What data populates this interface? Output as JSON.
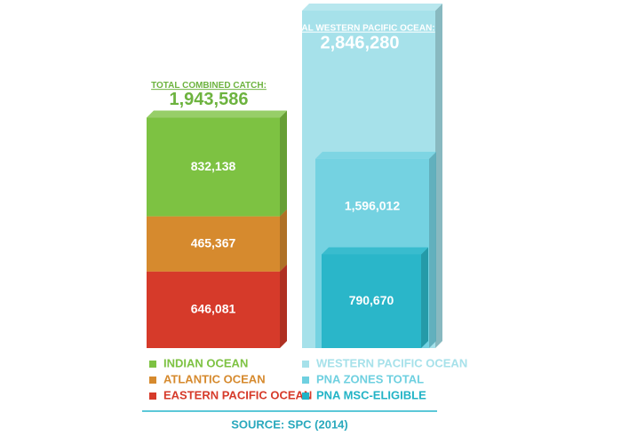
{
  "chart_data": [
    {
      "type": "stacked-bar",
      "title": "TOTAL COMBINED CATCH:",
      "total": 1943586,
      "total_label": "1,943,586",
      "series": [
        {
          "name": "INDIAN OCEAN",
          "color": "#7dc242",
          "values": [
            832138
          ],
          "value_labels": [
            "832,138"
          ]
        },
        {
          "name": "ATLANTIC OCEAN",
          "color": "#d68a2e",
          "values": [
            465367
          ],
          "value_labels": [
            "465,367"
          ]
        },
        {
          "name": "EASTERN PACIFIC OCEAN",
          "color": "#d63a2a",
          "values": [
            646081
          ],
          "value_labels": [
            "646,081"
          ]
        }
      ]
    },
    {
      "type": "nested-bar",
      "title": "TOTAL WESTERN PACIFIC OCEAN:",
      "series": [
        {
          "name": "WESTERN PACIFIC OCEAN",
          "color": "#a6e1ea",
          "values": [
            2846280
          ],
          "value_labels": [
            "2,846,280"
          ]
        },
        {
          "name": "PNA ZONES TOTAL",
          "color": "#6fd0e0",
          "values": [
            1596012
          ],
          "value_labels": [
            "1,596,012"
          ]
        },
        {
          "name": "PNA MSC-ELIGIBLE",
          "color": "#22b3c6",
          "values": [
            790670
          ],
          "value_labels": [
            "790,670"
          ]
        }
      ]
    }
  ],
  "source": "SOURCE: SPC (2014)"
}
